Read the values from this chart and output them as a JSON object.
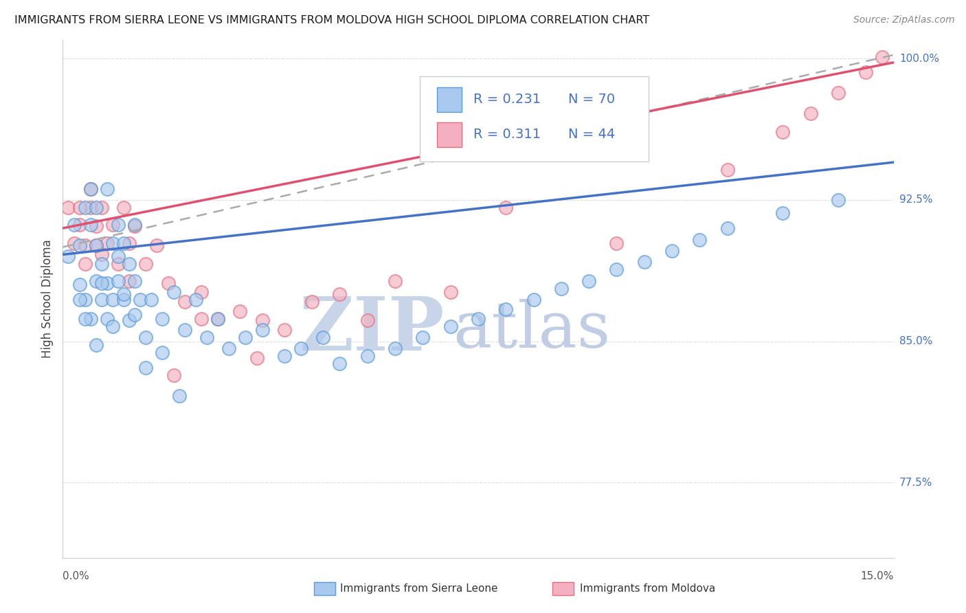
{
  "title": "IMMIGRANTS FROM SIERRA LEONE VS IMMIGRANTS FROM MOLDOVA HIGH SCHOOL DIPLOMA CORRELATION CHART",
  "source": "Source: ZipAtlas.com",
  "ylabel": "High School Diploma",
  "ytick_vals": [
    0.775,
    0.85,
    0.925,
    1.0
  ],
  "ytick_labels": [
    "77.5%",
    "85.0%",
    "92.5%",
    "100.0%"
  ],
  "xtick_left_label": "0.0%",
  "xtick_right_label": "15.0%",
  "xlim": [
    0.0,
    0.15
  ],
  "ylim": [
    0.735,
    1.01
  ],
  "legend_r1": "0.231",
  "legend_n1": "70",
  "legend_r2": "0.311",
  "legend_n2": "44",
  "color_blue_fill": "#A8C8ED",
  "color_blue_edge": "#5B9BD5",
  "color_pink_fill": "#F4B0C0",
  "color_pink_edge": "#E07080",
  "color_blue_line": "#4472C4",
  "color_pink_line": "#E05070",
  "color_dashed": "#AAAAAA",
  "bg": "#FFFFFF",
  "watermark_zip_color": "#C8D4E8",
  "watermark_atlas_color": "#C0CDE4",
  "sl_legend_color": "#4472C4",
  "md_legend_color": "#333333",
  "sierra_leone_x": [
    0.001,
    0.002,
    0.003,
    0.003,
    0.004,
    0.004,
    0.005,
    0.005,
    0.005,
    0.006,
    0.006,
    0.006,
    0.007,
    0.007,
    0.008,
    0.008,
    0.008,
    0.009,
    0.009,
    0.01,
    0.01,
    0.011,
    0.011,
    0.012,
    0.012,
    0.013,
    0.013,
    0.014,
    0.015,
    0.016,
    0.018,
    0.02,
    0.022,
    0.024,
    0.026,
    0.028,
    0.03,
    0.033,
    0.036,
    0.04,
    0.043,
    0.047,
    0.05,
    0.055,
    0.06,
    0.065,
    0.07,
    0.075,
    0.08,
    0.085,
    0.09,
    0.095,
    0.1,
    0.105,
    0.11,
    0.115,
    0.12,
    0.13,
    0.14,
    0.003,
    0.004,
    0.006,
    0.007,
    0.009,
    0.01,
    0.011,
    0.013,
    0.015,
    0.018,
    0.021
  ],
  "sierra_leone_y": [
    0.895,
    0.912,
    0.88,
    0.901,
    0.872,
    0.921,
    0.862,
    0.912,
    0.931,
    0.882,
    0.901,
    0.921,
    0.872,
    0.891,
    0.862,
    0.881,
    0.931,
    0.872,
    0.902,
    0.882,
    0.912,
    0.872,
    0.902,
    0.861,
    0.891,
    0.882,
    0.912,
    0.872,
    0.852,
    0.872,
    0.862,
    0.876,
    0.856,
    0.872,
    0.852,
    0.862,
    0.846,
    0.852,
    0.856,
    0.842,
    0.846,
    0.852,
    0.838,
    0.842,
    0.846,
    0.852,
    0.858,
    0.862,
    0.867,
    0.872,
    0.878,
    0.882,
    0.888,
    0.892,
    0.898,
    0.904,
    0.91,
    0.918,
    0.925,
    0.872,
    0.862,
    0.848,
    0.881,
    0.858,
    0.895,
    0.875,
    0.864,
    0.836,
    0.844,
    0.821
  ],
  "moldova_x": [
    0.001,
    0.002,
    0.003,
    0.004,
    0.005,
    0.005,
    0.006,
    0.006,
    0.007,
    0.008,
    0.009,
    0.01,
    0.011,
    0.012,
    0.013,
    0.015,
    0.017,
    0.019,
    0.022,
    0.025,
    0.028,
    0.032,
    0.036,
    0.04,
    0.045,
    0.05,
    0.06,
    0.07,
    0.08,
    0.1,
    0.12,
    0.13,
    0.135,
    0.14,
    0.145,
    0.148,
    0.003,
    0.004,
    0.007,
    0.012,
    0.02,
    0.025,
    0.035,
    0.055
  ],
  "moldova_y": [
    0.921,
    0.902,
    0.912,
    0.891,
    0.921,
    0.931,
    0.911,
    0.901,
    0.921,
    0.902,
    0.912,
    0.891,
    0.921,
    0.902,
    0.911,
    0.891,
    0.901,
    0.881,
    0.871,
    0.876,
    0.862,
    0.866,
    0.861,
    0.856,
    0.871,
    0.875,
    0.882,
    0.876,
    0.921,
    0.902,
    0.941,
    0.961,
    0.971,
    0.982,
    0.993,
    1.001,
    0.921,
    0.901,
    0.896,
    0.882,
    0.832,
    0.862,
    0.841,
    0.861
  ]
}
